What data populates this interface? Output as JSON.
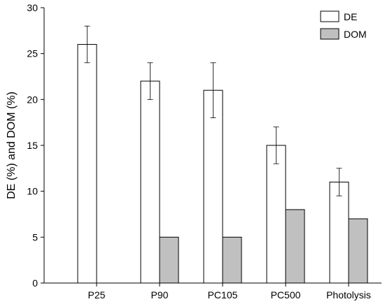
{
  "chart_data": {
    "type": "bar",
    "categories": [
      "P25",
      "P90",
      "PC105",
      "PC500",
      "Photolysis"
    ],
    "series": [
      {
        "name": "DE",
        "values": [
          26,
          22,
          21,
          15,
          11
        ],
        "error": [
          2,
          2,
          3,
          2,
          1.5
        ],
        "color": "#ffffff"
      },
      {
        "name": "DOM",
        "values": [
          null,
          5,
          5,
          8,
          7
        ],
        "color": "#c0c0c0"
      }
    ],
    "ylabel": "DE (%) and DOM (%)",
    "ylim": [
      0,
      30
    ],
    "yticks": [
      0,
      5,
      10,
      15,
      20,
      25,
      30
    ],
    "grid": false,
    "legend_position": "top-right"
  }
}
